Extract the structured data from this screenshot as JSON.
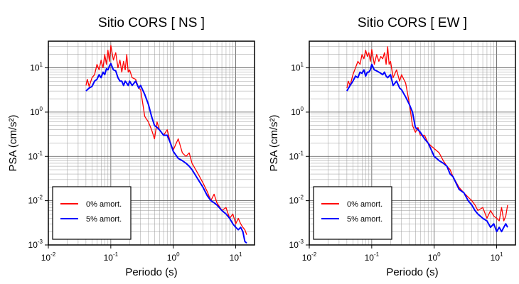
{
  "chart_data": [
    {
      "type": "line",
      "title": "Sitio CORS [ NS ]",
      "xlabel": "Periodo (s)",
      "ylabel": "PSA (cm/s²)",
      "xscale": "log",
      "yscale": "log",
      "xlim": [
        0.01,
        20
      ],
      "ylim": [
        0.001,
        40
      ],
      "xtick_labels": [
        "10",
        "10",
        "10",
        "10"
      ],
      "xtick_exponents": [
        "-2",
        "-1",
        "0",
        "1"
      ],
      "ytick_labels": [
        "10",
        "10",
        "10",
        "10",
        "10"
      ],
      "ytick_exponents": [
        "-3",
        "-2",
        "-1",
        "0",
        "1"
      ],
      "grid": true,
      "legend": "bottom-left",
      "series": [
        {
          "name": "0% amort.",
          "color": "#ff0000",
          "x": [
            0.04,
            0.042,
            0.045,
            0.05,
            0.055,
            0.06,
            0.065,
            0.07,
            0.075,
            0.08,
            0.085,
            0.09,
            0.095,
            0.1,
            0.11,
            0.12,
            0.13,
            0.14,
            0.15,
            0.16,
            0.17,
            0.18,
            0.19,
            0.2,
            0.22,
            0.25,
            0.28,
            0.3,
            0.35,
            0.4,
            0.45,
            0.5,
            0.55,
            0.6,
            0.7,
            0.8,
            0.9,
            1.0,
            1.2,
            1.4,
            1.6,
            1.8,
            2.0,
            2.5,
            3.0,
            3.5,
            4.0,
            4.5,
            5.0,
            6.0,
            7.0,
            8.0,
            9.0,
            10.0,
            11.0,
            12.0,
            13.0,
            14.0,
            15.0
          ],
          "y": [
            4.0,
            5.5,
            3.8,
            6.0,
            7.0,
            12.0,
            9.0,
            15.0,
            10.0,
            20.0,
            12.0,
            25.0,
            14.0,
            32.0,
            15.0,
            22.0,
            10.0,
            15.0,
            8.0,
            14.0,
            9.0,
            20.0,
            8.0,
            9.0,
            6.0,
            5.5,
            3.5,
            3.2,
            0.8,
            0.6,
            0.4,
            0.25,
            0.6,
            0.4,
            0.3,
            0.4,
            0.2,
            0.14,
            0.25,
            0.12,
            0.1,
            0.12,
            0.07,
            0.04,
            0.025,
            0.016,
            0.01,
            0.014,
            0.009,
            0.006,
            0.007,
            0.004,
            0.005,
            0.003,
            0.004,
            0.003,
            0.0025,
            0.0022,
            0.0017
          ]
        },
        {
          "name": "5% amort.",
          "color": "#0000ff",
          "x": [
            0.04,
            0.045,
            0.05,
            0.055,
            0.06,
            0.065,
            0.07,
            0.075,
            0.08,
            0.085,
            0.09,
            0.095,
            0.1,
            0.11,
            0.12,
            0.13,
            0.14,
            0.15,
            0.16,
            0.17,
            0.18,
            0.19,
            0.2,
            0.22,
            0.25,
            0.28,
            0.3,
            0.35,
            0.4,
            0.45,
            0.5,
            0.55,
            0.6,
            0.7,
            0.8,
            0.9,
            1.0,
            1.2,
            1.4,
            1.6,
            1.8,
            2.0,
            2.5,
            3.0,
            3.5,
            4.0,
            4.5,
            5.0,
            6.0,
            7.0,
            8.0,
            9.0,
            10.0,
            11.0,
            12.0,
            13.0,
            14.0,
            15.0
          ],
          "y": [
            3.0,
            3.5,
            3.8,
            5.0,
            5.5,
            7.0,
            6.0,
            8.0,
            7.0,
            9.5,
            9.0,
            11.0,
            12.5,
            9.0,
            8.5,
            6.0,
            5.0,
            5.0,
            4.0,
            5.0,
            4.5,
            4.0,
            5.0,
            4.0,
            5.0,
            3.5,
            4.0,
            2.5,
            1.5,
            0.8,
            0.5,
            0.45,
            0.4,
            0.3,
            0.3,
            0.2,
            0.13,
            0.09,
            0.08,
            0.07,
            0.06,
            0.05,
            0.03,
            0.02,
            0.013,
            0.01,
            0.009,
            0.008,
            0.006,
            0.005,
            0.004,
            0.003,
            0.0025,
            0.0022,
            0.0025,
            0.002,
            0.0012,
            0.0011
          ]
        }
      ]
    },
    {
      "type": "line",
      "title": "Sitio CORS [ EW ]",
      "xlabel": "Periodo (s)",
      "ylabel": "PSA (cm/s²)",
      "xscale": "log",
      "yscale": "log",
      "xlim": [
        0.01,
        20
      ],
      "ylim": [
        0.001,
        40
      ],
      "xtick_labels": [
        "10",
        "10",
        "10",
        "10"
      ],
      "xtick_exponents": [
        "-2",
        "-1",
        "0",
        "1"
      ],
      "ytick_labels": [
        "10",
        "10",
        "10",
        "10",
        "10"
      ],
      "ytick_exponents": [
        "-3",
        "-2",
        "-1",
        "0",
        "1"
      ],
      "grid": true,
      "legend": "bottom-left",
      "series": [
        {
          "name": "0% amort.",
          "color": "#ff0000",
          "x": [
            0.04,
            0.042,
            0.045,
            0.05,
            0.055,
            0.06,
            0.065,
            0.07,
            0.075,
            0.08,
            0.085,
            0.09,
            0.095,
            0.1,
            0.11,
            0.12,
            0.13,
            0.14,
            0.15,
            0.16,
            0.17,
            0.18,
            0.19,
            0.2,
            0.22,
            0.25,
            0.28,
            0.3,
            0.35,
            0.4,
            0.45,
            0.5,
            0.55,
            0.6,
            0.7,
            0.8,
            0.9,
            1.0,
            1.2,
            1.4,
            1.6,
            1.8,
            2.0,
            2.5,
            3.0,
            3.5,
            4.0,
            4.5,
            5.0,
            6.0,
            7.0,
            8.0,
            9.0,
            10.0,
            11.0,
            12.0,
            13.0,
            14.0,
            15.0
          ],
          "y": [
            3.5,
            5.0,
            4.0,
            7.0,
            10.0,
            14.0,
            12.0,
            20.0,
            16.0,
            25.0,
            18.0,
            22.0,
            14.0,
            26.0,
            12.0,
            20.0,
            14.0,
            18.0,
            16.0,
            22.0,
            12.0,
            30.0,
            12.0,
            14.0,
            6.0,
            9.0,
            5.0,
            7.0,
            4.5,
            1.6,
            0.5,
            0.35,
            0.45,
            0.3,
            0.3,
            0.2,
            0.17,
            0.15,
            0.12,
            0.08,
            0.06,
            0.05,
            0.035,
            0.02,
            0.015,
            0.012,
            0.01,
            0.008,
            0.006,
            0.007,
            0.004,
            0.006,
            0.0045,
            0.004,
            0.0035,
            0.007,
            0.0035,
            0.0045,
            0.008
          ]
        },
        {
          "name": "5% amort.",
          "color": "#0000ff",
          "x": [
            0.04,
            0.045,
            0.05,
            0.055,
            0.06,
            0.065,
            0.07,
            0.075,
            0.08,
            0.085,
            0.09,
            0.095,
            0.1,
            0.11,
            0.12,
            0.13,
            0.14,
            0.15,
            0.16,
            0.17,
            0.18,
            0.19,
            0.2,
            0.22,
            0.25,
            0.28,
            0.3,
            0.35,
            0.4,
            0.45,
            0.5,
            0.55,
            0.6,
            0.7,
            0.8,
            0.9,
            1.0,
            1.2,
            1.4,
            1.6,
            1.8,
            2.0,
            2.5,
            3.0,
            3.5,
            4.0,
            4.5,
            5.0,
            6.0,
            7.0,
            8.0,
            9.0,
            10.0,
            11.0,
            12.0,
            13.0,
            14.0,
            15.0
          ],
          "y": [
            3.0,
            4.0,
            5.0,
            6.5,
            6.0,
            8.0,
            7.5,
            9.0,
            6.5,
            8.0,
            8.0,
            9.0,
            12.0,
            9.0,
            8.5,
            8.0,
            7.5,
            7.0,
            8.0,
            6.5,
            6.0,
            6.5,
            7.0,
            4.0,
            5.0,
            3.5,
            3.2,
            2.2,
            1.5,
            1.0,
            0.45,
            0.4,
            0.35,
            0.25,
            0.2,
            0.14,
            0.1,
            0.08,
            0.07,
            0.06,
            0.04,
            0.035,
            0.018,
            0.015,
            0.01,
            0.008,
            0.006,
            0.005,
            0.004,
            0.0035,
            0.0025,
            0.003,
            0.002,
            0.0025,
            0.002,
            0.0025,
            0.003,
            0.0025
          ]
        }
      ]
    }
  ]
}
